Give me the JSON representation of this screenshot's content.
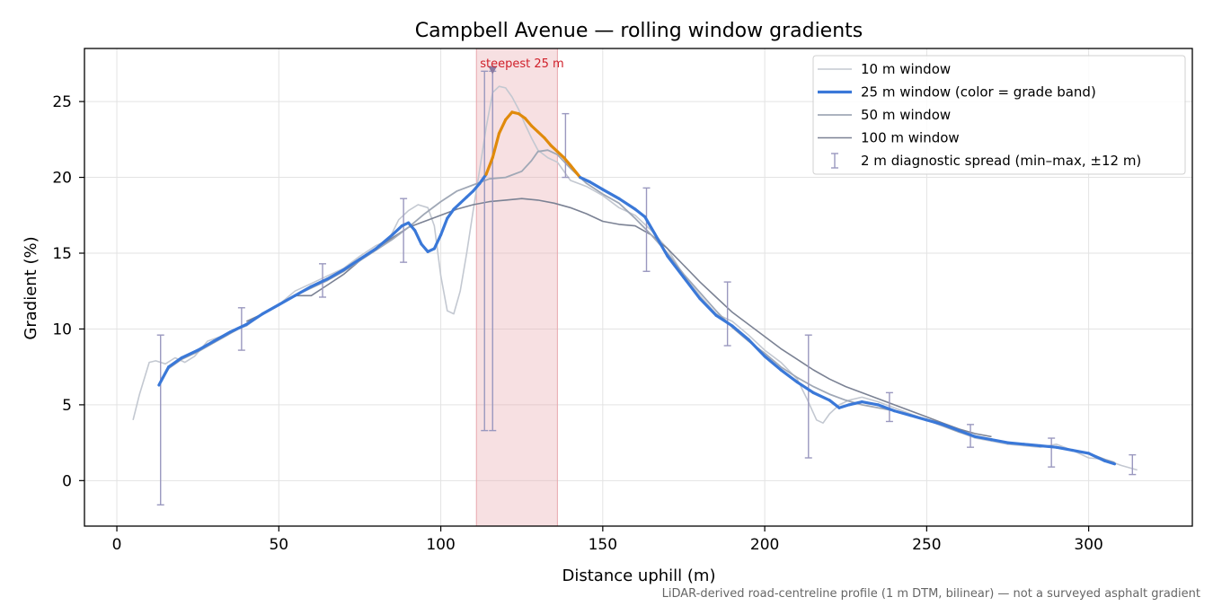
{
  "chart_data": {
    "type": "line",
    "title": "Campbell Avenue — rolling window gradients",
    "xlabel": "Distance uphill (m)",
    "ylabel": "Gradient (%)",
    "xlim": [
      -10,
      332
    ],
    "ylim": [
      -3,
      28.5
    ],
    "xticks": [
      0,
      50,
      100,
      150,
      200,
      250,
      300
    ],
    "yticks": [
      0,
      5,
      10,
      15,
      20,
      25
    ],
    "grid": true,
    "legend_position": "top-right",
    "footnote": "LiDAR-derived road-centreline profile (1 m DTM, bilinear) — not a surveyed asphalt gradient",
    "highlight": {
      "label": "steepest 25 m",
      "x_start": 111,
      "x_end": 136,
      "marker_x": 116,
      "marker_y": 27.1,
      "color": "#e8a7ad"
    },
    "series": [
      {
        "name": "10 m window",
        "color": "#c3c8d1",
        "x": [
          5,
          7,
          10,
          12,
          15,
          18,
          21,
          24,
          28,
          32,
          36,
          40,
          45,
          50,
          55,
          60,
          65,
          70,
          75,
          80,
          84,
          87,
          90,
          93,
          96,
          98,
          100,
          102,
          104,
          106,
          108,
          110,
          112,
          114,
          116,
          118,
          120,
          122,
          124,
          126,
          128,
          130,
          133,
          136,
          140,
          145,
          150,
          155,
          160,
          165,
          170,
          175,
          180,
          185,
          190,
          195,
          200,
          205,
          210,
          213,
          216,
          218,
          220,
          223,
          226,
          230,
          235,
          240,
          245,
          250,
          255,
          260,
          265,
          270,
          275,
          280,
          285,
          290,
          295,
          300,
          305,
          310,
          315
        ],
        "y": [
          4.0,
          5.7,
          7.8,
          7.9,
          7.7,
          8.1,
          7.8,
          8.2,
          9.2,
          9.5,
          9.9,
          10.2,
          11.0,
          11.6,
          12.5,
          13.0,
          13.5,
          14.0,
          14.8,
          15.5,
          15.9,
          17.2,
          17.8,
          18.2,
          18.0,
          16.8,
          13.5,
          11.2,
          11.0,
          12.5,
          15.0,
          17.8,
          20.5,
          23.3,
          25.6,
          26.0,
          25.9,
          25.3,
          24.5,
          23.5,
          22.6,
          21.8,
          21.3,
          21.0,
          19.8,
          19.4,
          18.8,
          18.0,
          17.5,
          16.5,
          15.3,
          13.5,
          12.2,
          11.0,
          10.5,
          9.6,
          8.6,
          7.8,
          6.7,
          5.4,
          4.0,
          3.8,
          4.4,
          5.0,
          5.3,
          5.5,
          5.2,
          4.8,
          4.4,
          4.0,
          3.6,
          3.2,
          2.8,
          2.6,
          2.4,
          2.3,
          2.2,
          2.4,
          2.0,
          1.5,
          1.4,
          1.0,
          0.7
        ]
      },
      {
        "name": "25 m window (color = grade band)",
        "color": "#3a78d8",
        "band_color": "#e08a0b",
        "band_threshold": 20,
        "x": [
          13,
          16,
          20,
          25,
          30,
          35,
          40,
          45,
          50,
          55,
          60,
          65,
          70,
          75,
          80,
          85,
          88,
          90,
          92,
          94,
          96,
          98,
          100,
          102,
          104,
          106,
          108,
          110,
          112,
          114,
          116,
          118,
          120,
          122,
          124,
          126,
          128,
          130,
          132,
          134,
          136,
          138,
          140,
          143,
          146,
          150,
          155,
          160,
          163,
          166,
          170,
          175,
          180,
          185,
          190,
          195,
          200,
          205,
          210,
          215,
          220,
          223,
          226,
          230,
          235,
          240,
          245,
          250,
          255,
          260,
          265,
          270,
          275,
          280,
          285,
          290,
          295,
          300,
          305,
          308
        ],
        "y": [
          6.3,
          7.5,
          8.1,
          8.6,
          9.2,
          9.8,
          10.3,
          11.0,
          11.6,
          12.2,
          12.8,
          13.3,
          13.9,
          14.6,
          15.3,
          16.2,
          16.8,
          17.0,
          16.5,
          15.6,
          15.1,
          15.3,
          16.2,
          17.3,
          17.9,
          18.3,
          18.7,
          19.1,
          19.6,
          20.2,
          21.3,
          22.9,
          23.8,
          24.3,
          24.2,
          23.9,
          23.4,
          23.0,
          22.6,
          22.1,
          21.7,
          21.3,
          20.8,
          20.0,
          19.7,
          19.2,
          18.6,
          17.9,
          17.4,
          16.3,
          14.8,
          13.4,
          12.0,
          10.9,
          10.2,
          9.3,
          8.2,
          7.3,
          6.5,
          5.8,
          5.3,
          4.8,
          5.0,
          5.2,
          5.0,
          4.6,
          4.3,
          4.0,
          3.7,
          3.3,
          2.9,
          2.7,
          2.5,
          2.4,
          2.3,
          2.2,
          2.0,
          1.8,
          1.3,
          1.1
        ]
      },
      {
        "name": "50 m window",
        "color": "#a0a8b6",
        "x": [
          13,
          16,
          20,
          25,
          30,
          35,
          40,
          45,
          50,
          55,
          60,
          65,
          70,
          75,
          80,
          85,
          90,
          95,
          100,
          105,
          110,
          115,
          120,
          125,
          128,
          130,
          133,
          136,
          140,
          145,
          150,
          155,
          160,
          165,
          170,
          175,
          180,
          185,
          190,
          195,
          200,
          205,
          210,
          215,
          220,
          225,
          230,
          235,
          240,
          245,
          250,
          255,
          260,
          265,
          270,
          275,
          280,
          285,
          290,
          295,
          300,
          305,
          308
        ],
        "y": [
          6.3,
          7.4,
          8.0,
          8.5,
          9.1,
          9.7,
          10.3,
          11.0,
          11.6,
          12.2,
          12.7,
          13.2,
          13.8,
          14.5,
          15.2,
          15.9,
          16.7,
          17.6,
          18.4,
          19.1,
          19.5,
          19.9,
          20.0,
          20.4,
          21.1,
          21.7,
          21.8,
          21.5,
          20.6,
          19.6,
          18.9,
          18.3,
          17.3,
          16.2,
          15.0,
          13.6,
          12.4,
          11.2,
          10.1,
          9.2,
          8.4,
          7.5,
          6.8,
          6.2,
          5.7,
          5.3,
          5.0,
          4.8,
          4.6,
          4.3,
          4.0,
          3.6,
          3.2,
          2.9,
          2.7,
          2.5,
          2.4,
          2.3,
          2.2,
          2.0,
          1.8,
          1.4,
          1.2
        ]
      },
      {
        "name": "100 m window",
        "color": "#7b8294",
        "x": [
          40,
          45,
          50,
          55,
          60,
          65,
          70,
          75,
          80,
          85,
          90,
          95,
          100,
          105,
          110,
          115,
          120,
          125,
          130,
          135,
          140,
          145,
          150,
          155,
          160,
          165,
          170,
          175,
          180,
          185,
          190,
          195,
          200,
          205,
          210,
          215,
          220,
          225,
          230,
          235,
          240,
          245,
          250,
          255,
          260,
          265,
          270
        ],
        "y": [
          10.5,
          11.0,
          11.6,
          12.2,
          12.2,
          12.9,
          13.6,
          14.5,
          15.3,
          16.0,
          16.7,
          17.1,
          17.5,
          17.9,
          18.2,
          18.4,
          18.5,
          18.6,
          18.5,
          18.3,
          18.0,
          17.6,
          17.1,
          16.9,
          16.8,
          16.2,
          15.3,
          14.2,
          13.1,
          12.1,
          11.1,
          10.3,
          9.5,
          8.7,
          8.0,
          7.3,
          6.7,
          6.2,
          5.8,
          5.4,
          5.0,
          4.6,
          4.2,
          3.8,
          3.4,
          3.1,
          2.9
        ]
      },
      {
        "name": "2 m diagnostic spread (min–max, ±12 m)",
        "color": "#9a98bf",
        "type": "errorbar",
        "points": [
          {
            "x": 13.5,
            "min": -1.6,
            "max": 9.6
          },
          {
            "x": 38.5,
            "min": 8.6,
            "max": 11.4
          },
          {
            "x": 63.5,
            "min": 12.1,
            "max": 14.3
          },
          {
            "x": 88.5,
            "min": 14.4,
            "max": 18.6
          },
          {
            "x": 113.5,
            "min": 3.3,
            "max": 27.0
          },
          {
            "x": 116.0,
            "min": 3.3,
            "max": 27.0
          },
          {
            "x": 138.5,
            "min": 20.0,
            "max": 24.2
          },
          {
            "x": 163.5,
            "min": 13.8,
            "max": 19.3
          },
          {
            "x": 188.5,
            "min": 8.9,
            "max": 13.1
          },
          {
            "x": 213.5,
            "min": 1.5,
            "max": 9.6
          },
          {
            "x": 238.5,
            "min": 3.9,
            "max": 5.8
          },
          {
            "x": 263.5,
            "min": 2.2,
            "max": 3.7
          },
          {
            "x": 288.5,
            "min": 0.9,
            "max": 2.8
          },
          {
            "x": 313.5,
            "min": 0.4,
            "max": 1.7
          }
        ]
      }
    ]
  }
}
